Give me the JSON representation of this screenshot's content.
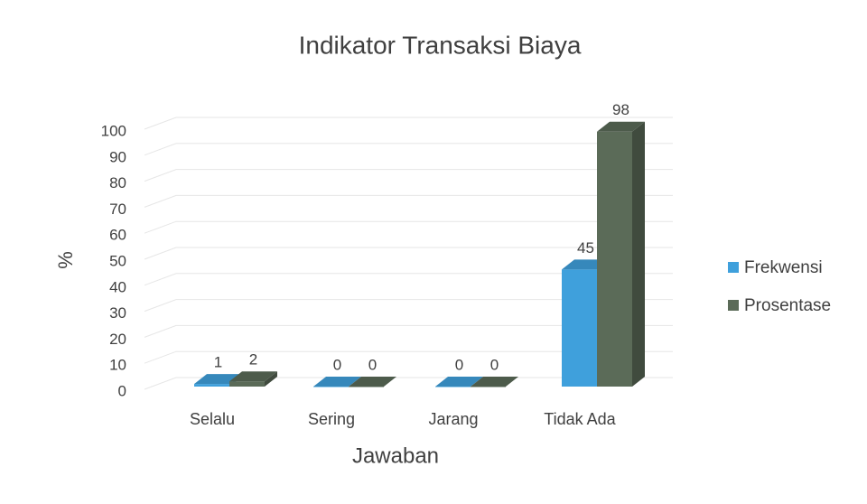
{
  "chart_data": {
    "type": "bar3d",
    "title": "Indikator Transaksi Biaya",
    "x_label": "Jawaban",
    "y_label": "%",
    "categories": [
      "Selalu",
      "Sering",
      "Jarang",
      "Tidak Ada"
    ],
    "series": [
      {
        "name": "Frekwensi",
        "color": "#3fa0dc",
        "values": [
          1,
          0,
          0,
          45
        ]
      },
      {
        "name": "Prosentase",
        "color": "#5b6b58",
        "values": [
          2,
          0,
          0,
          98
        ]
      }
    ],
    "ylim": [
      0,
      100
    ],
    "yticks": [
      0,
      10,
      20,
      30,
      40,
      50,
      60,
      70,
      80,
      90,
      100
    ],
    "grid": true,
    "legend": "right"
  }
}
